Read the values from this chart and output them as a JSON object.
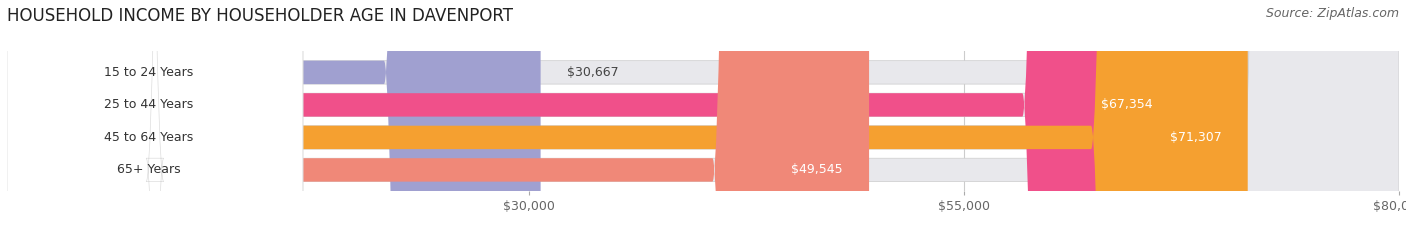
{
  "title": "HOUSEHOLD INCOME BY HOUSEHOLDER AGE IN DAVENPORT",
  "source": "Source: ZipAtlas.com",
  "categories": [
    "15 to 24 Years",
    "25 to 44 Years",
    "45 to 64 Years",
    "65+ Years"
  ],
  "values": [
    30667,
    67354,
    71307,
    49545
  ],
  "bar_colors": [
    "#a0a0d0",
    "#f0508a",
    "#f5a030",
    "#f08878"
  ],
  "bar_labels": [
    "$30,667",
    "$67,354",
    "$71,307",
    "$49,545"
  ],
  "xlim_max": 80000,
  "xticks": [
    30000,
    55000,
    80000
  ],
  "xticklabels": [
    "$30,000",
    "$55,000",
    "$80,000"
  ],
  "background_color": "#ffffff",
  "bar_background_color": "#e8e8ec",
  "label_bg_color": "#ffffff",
  "title_fontsize": 12,
  "source_fontsize": 9,
  "tick_fontsize": 9,
  "bar_label_fontsize": 9,
  "cat_label_fontsize": 9
}
